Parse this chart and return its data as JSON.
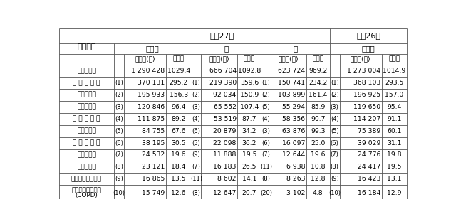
{
  "title_h27": "平成27年",
  "title_h26": "平成26年",
  "header2": [
    "総　数",
    "男",
    "女",
    "総　数"
  ],
  "subheader_val": "死亡数(人)",
  "subheader_rate": "死亡率",
  "death_cause_header": "死　　因",
  "row_labels": [
    "全　死　因",
    "悪 性 新 生 物",
    "心　疾　患",
    "肺　　　炎",
    "脳 血 管 疾 患",
    "老　　　衰",
    "不 慮 の 事 故",
    "腎　不　全",
    "自　　　殺",
    "大動脈瘤及び解離",
    "慢性閉塞性肺疾患\n(COPD)"
  ],
  "rank_total": [
    "",
    "(1)",
    "(2)",
    "(3)",
    "(4)",
    "(5)",
    "(6)",
    "(7)",
    "(8)",
    "(9)",
    "(10)"
  ],
  "rank_male": [
    "",
    "(1)",
    "(2)",
    "(3)",
    "(4)",
    "(6)",
    "(5)",
    "(9)",
    "(7)",
    "(11)",
    "(8)"
  ],
  "rank_female": [
    "",
    "(1)",
    "(2)",
    "(5)",
    "(4)",
    "(3)",
    "(6)",
    "(7)",
    "(11)",
    "(8)",
    "(20)"
  ],
  "rank_h26": [
    "",
    "(1)",
    "(2)",
    "(3)",
    "(4)",
    "(5)",
    "(6)",
    "(7)",
    "(8)",
    "(9)",
    "(10)"
  ],
  "data": [
    [
      "1 290 428",
      "1029.4",
      "666 704",
      "1092.8",
      "623 724",
      "969.2",
      "1 273 004",
      "1014.9"
    ],
    [
      "370 131",
      "295.2",
      "219 390",
      "359.6",
      "150 741",
      "234.2",
      "368 103",
      "293.5"
    ],
    [
      "195 933",
      "156.3",
      "92 034",
      "150.9",
      "103 899",
      "161.4",
      "196 925",
      "157.0"
    ],
    [
      "120 846",
      "96.4",
      "65 552",
      "107.4",
      "55 294",
      "85.9",
      "119 650",
      "95.4"
    ],
    [
      "111 875",
      "89.2",
      "53 519",
      "87.7",
      "58 356",
      "90.7",
      "114 207",
      "91.1"
    ],
    [
      "84 755",
      "67.6",
      "20 879",
      "34.2",
      "63 876",
      "99.3",
      "75 389",
      "60.1"
    ],
    [
      "38 195",
      "30.5",
      "22 098",
      "36.2",
      "16 097",
      "25.0",
      "39 029",
      "31.1"
    ],
    [
      "24 532",
      "19.6",
      "11 888",
      "19.5",
      "12 644",
      "19.6",
      "24 776",
      "19.8"
    ],
    [
      "23 121",
      "18.4",
      "16 183",
      "26.5",
      "6 938",
      "10.8",
      "24 417",
      "19.5"
    ],
    [
      "16 865",
      "13.5",
      "8 602",
      "14.1",
      "8 263",
      "12.8",
      "16 423",
      "13.1"
    ],
    [
      "15 749",
      "12.6",
      "12 647",
      "20.7",
      "3 102",
      "4.8",
      "16 184",
      "12.9"
    ]
  ],
  "bg_color": "#ffffff",
  "line_color": "#555555",
  "text_color": "#000000"
}
